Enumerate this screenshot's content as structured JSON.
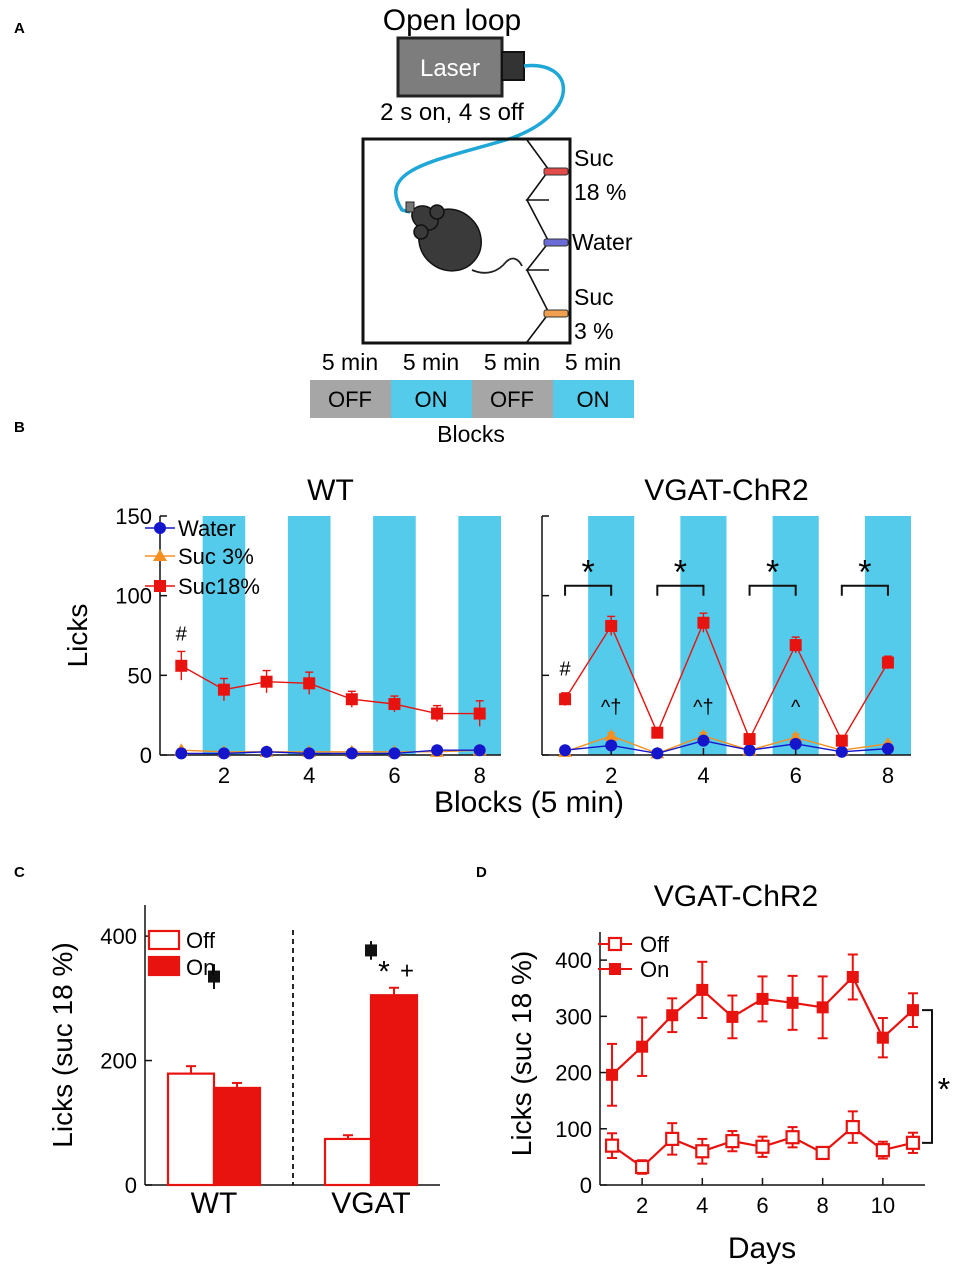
{
  "colors": {
    "red": "#e8120f",
    "blue": "#1515cc",
    "orange": "#f39021",
    "cyan": "#55cbeb",
    "gray": "#a6a6a6",
    "black": "#111111"
  },
  "panelA": {
    "label": "A",
    "title": "Open loop",
    "laser_label": "Laser",
    "schedule": "2 s on, 4 s off",
    "spouts": {
      "suc18_line1": "Suc",
      "suc18_line2": "18 %",
      "water": "Water",
      "suc3_line1": "Suc",
      "suc3_line2": "3 %"
    },
    "blocks": [
      {
        "duration": "5 min",
        "state": "OFF"
      },
      {
        "duration": "5 min",
        "state": "ON"
      },
      {
        "duration": "5 min",
        "state": "OFF"
      },
      {
        "duration": "5 min",
        "state": "ON"
      }
    ],
    "blocks_label": "Blocks"
  },
  "panelB": {
    "label": "B"
  },
  "panelC": {
    "label": "C"
  },
  "panelD": {
    "label": "D"
  },
  "chart_data": [
    {
      "id": "B_WT",
      "type": "line",
      "title": "WT",
      "xlabel": "Blocks (5 min)",
      "ylabel": "Licks",
      "xlim": [
        0.5,
        8.5
      ],
      "ylim": [
        0,
        150
      ],
      "xticks": [
        2,
        4,
        6,
        8
      ],
      "yticks": [
        0,
        50,
        100,
        150
      ],
      "on_blocks": [
        2,
        4,
        6,
        8
      ],
      "x": [
        1,
        2,
        3,
        4,
        5,
        6,
        7,
        8
      ],
      "series": [
        {
          "name": "Water",
          "marker": "circle",
          "values": [
            1,
            1,
            2,
            1,
            1,
            1,
            3,
            3
          ],
          "err": [
            1,
            1,
            1,
            1,
            1,
            1,
            1,
            1
          ]
        },
        {
          "name": "Suc 3%",
          "marker": "triangle",
          "values": [
            3,
            2,
            2,
            2,
            2,
            2,
            2,
            3
          ],
          "err": [
            1,
            1,
            1,
            1,
            1,
            1,
            1,
            1
          ]
        },
        {
          "name": "Suc18%",
          "marker": "square",
          "values": [
            56,
            41,
            46,
            45,
            35,
            32,
            26,
            26
          ],
          "err": [
            9,
            7,
            7,
            7,
            5,
            5,
            5,
            8
          ]
        }
      ],
      "annotations": [
        {
          "text": "#",
          "x": 1,
          "y": 72
        }
      ]
    },
    {
      "id": "B_VGAT",
      "type": "line",
      "title": "VGAT-ChR2",
      "xlim": [
        0.5,
        8.5
      ],
      "ylim": [
        0,
        150
      ],
      "xticks": [
        2,
        4,
        6,
        8
      ],
      "on_blocks": [
        2,
        4,
        6,
        8
      ],
      "x": [
        1,
        2,
        3,
        4,
        5,
        6,
        7,
        8
      ],
      "series": [
        {
          "name": "Water",
          "marker": "circle",
          "values": [
            3,
            6,
            1,
            9,
            3,
            7,
            2,
            4
          ],
          "err": [
            1,
            1,
            1,
            2,
            1,
            1,
            1,
            1
          ]
        },
        {
          "name": "Suc 3%",
          "marker": "triangle",
          "values": [
            2,
            12,
            1,
            12,
            3,
            11,
            3,
            7
          ],
          "err": [
            1,
            2,
            1,
            2,
            1,
            2,
            1,
            1
          ]
        },
        {
          "name": "Suc18%",
          "marker": "square",
          "values": [
            35,
            81,
            14,
            83,
            10,
            69,
            9,
            58
          ],
          "err": [
            4,
            6,
            2,
            6,
            2,
            5,
            2,
            4
          ]
        }
      ],
      "annotations": [
        {
          "text": "#",
          "x": 1,
          "y": 50
        },
        {
          "text": "^†",
          "x": 2,
          "y": 26
        },
        {
          "text": "^†",
          "x": 4,
          "y": 26
        },
        {
          "text": "^",
          "x": 6,
          "y": 26
        }
      ],
      "significance": [
        {
          "text": "*",
          "x1": 1,
          "x2": 2,
          "y": 110
        },
        {
          "text": "*",
          "x1": 3,
          "x2": 4,
          "y": 110
        },
        {
          "text": "*",
          "x1": 5,
          "x2": 6,
          "y": 110
        },
        {
          "text": "*",
          "x1": 7,
          "x2": 8,
          "y": 110
        }
      ]
    },
    {
      "id": "C",
      "type": "bar",
      "ylabel": "Licks (suc 18 %)",
      "ylim": [
        0,
        450
      ],
      "yticks": [
        0,
        200,
        400
      ],
      "categories": [
        "WT",
        "VGAT"
      ],
      "series": [
        {
          "name": "Off",
          "values": [
            179,
            74
          ],
          "err": [
            12,
            6
          ]
        },
        {
          "name": "On",
          "values": [
            156,
            305
          ],
          "err": [
            8,
            12
          ]
        }
      ],
      "extra_points": [
        {
          "category": "WT",
          "value": 335,
          "err": 20
        },
        {
          "category": "VGAT",
          "value": 377,
          "err": 15
        }
      ],
      "annotations": [
        {
          "text": "*",
          "category": "VGAT",
          "y": 340
        },
        {
          "text": "+",
          "category": "VGAT",
          "y": 345
        }
      ]
    },
    {
      "id": "D",
      "type": "line",
      "title": "VGAT-ChR2",
      "xlabel": "Days",
      "ylabel": "Licks (suc 18 %)",
      "xlim": [
        0.6,
        11.6
      ],
      "ylim": [
        0,
        450
      ],
      "xticks": [
        2,
        4,
        6,
        8,
        10
      ],
      "yticks": [
        0,
        100,
        200,
        300,
        400
      ],
      "x": [
        1,
        2,
        3,
        4,
        5,
        6,
        7,
        8,
        9,
        10,
        11
      ],
      "series": [
        {
          "name": "Off",
          "marker": "open-square",
          "values": [
            70,
            32,
            82,
            60,
            78,
            68,
            85,
            57,
            103,
            62,
            75
          ],
          "err": [
            22,
            12,
            28,
            22,
            18,
            18,
            18,
            10,
            28,
            15,
            18
          ]
        },
        {
          "name": "On",
          "marker": "filled-square",
          "values": [
            196,
            246,
            302,
            347,
            299,
            331,
            324,
            316,
            370,
            262,
            311
          ],
          "err": [
            55,
            52,
            30,
            50,
            38,
            40,
            48,
            55,
            40,
            35,
            30
          ]
        }
      ],
      "annotations": [
        {
          "text": "*",
          "x": 11.6,
          "y": 200
        }
      ]
    }
  ]
}
